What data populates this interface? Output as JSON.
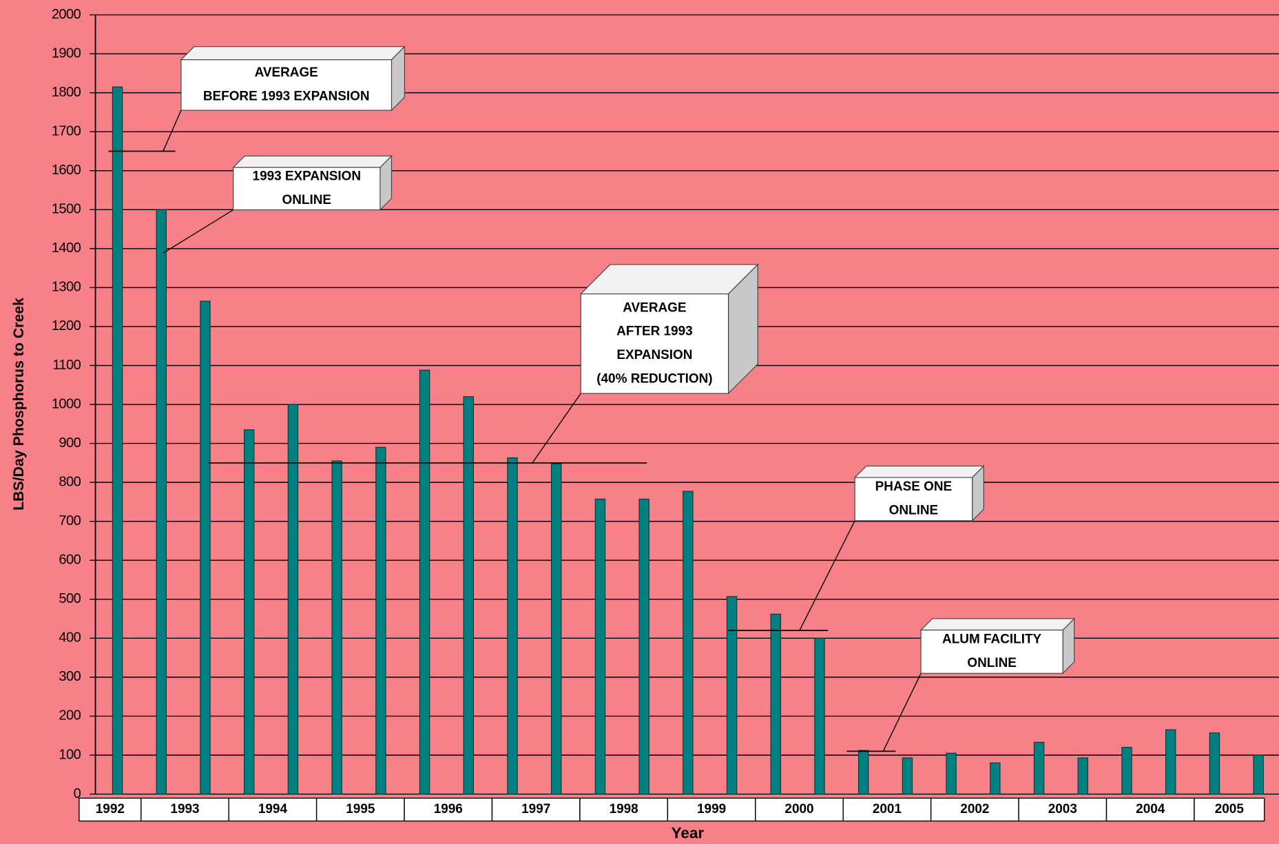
{
  "chart_data": {
    "type": "bar",
    "y_label": "LBS/Day Phosphorus to Creek",
    "x_label": "Year",
    "categories": [
      "1992",
      "1993",
      null,
      "1994",
      null,
      "1995",
      null,
      "1996",
      null,
      "1997",
      null,
      "1998",
      null,
      "1999",
      null,
      "2000",
      null,
      "2001",
      null,
      "2002",
      null,
      "2003",
      null,
      "2004",
      null,
      "2005",
      null
    ],
    "values": [
      1815,
      1500,
      1265,
      935,
      1000,
      855,
      890,
      1088,
      1020,
      863,
      848,
      757,
      757,
      777,
      507,
      462,
      400,
      112,
      93,
      105,
      80,
      133,
      93,
      120,
      165,
      157,
      100
    ],
    "color": "#008080",
    "ylim": [
      0,
      2000
    ],
    "yticks": [
      0,
      100,
      200,
      300,
      400,
      500,
      600,
      700,
      800,
      900,
      1000,
      1100,
      1200,
      1300,
      1400,
      1500,
      1600,
      1700,
      1800,
      1900,
      2000
    ],
    "grid": true,
    "annotations": [
      {
        "lines": [
          "AVERAGE",
          "BEFORE 1993 EXPANSION"
        ],
        "value": 1650
      },
      {
        "lines": [
          "1993 EXPANSION",
          "ONLINE"
        ],
        "value": null
      },
      {
        "lines": [
          "AVERAGE",
          "AFTER 1993",
          "EXPANSION",
          "(40% REDUCTION)"
        ],
        "value": 850
      },
      {
        "lines": [
          "PHASE ONE",
          "ONLINE"
        ],
        "value": 420
      },
      {
        "lines": [
          "ALUM FACILITY",
          "ONLINE"
        ],
        "value": 110
      }
    ]
  }
}
